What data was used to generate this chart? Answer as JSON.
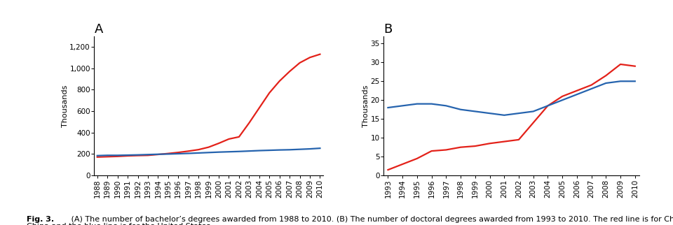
{
  "panel_A": {
    "title": "A",
    "ylabel": "Thousands",
    "years": [
      1988,
      1989,
      1990,
      1991,
      1992,
      1993,
      1994,
      1995,
      1996,
      1997,
      1998,
      1999,
      2000,
      2001,
      2002,
      2003,
      2004,
      2005,
      2006,
      2007,
      2008,
      2009,
      2010
    ],
    "china": [
      172,
      175,
      178,
      183,
      186,
      188,
      196,
      205,
      215,
      227,
      241,
      264,
      300,
      340,
      360,
      490,
      630,
      770,
      880,
      970,
      1050,
      1100,
      1130
    ],
    "usa": [
      185,
      188,
      188,
      190,
      192,
      195,
      198,
      200,
      203,
      206,
      210,
      214,
      218,
      221,
      224,
      228,
      232,
      235,
      238,
      240,
      244,
      248,
      254
    ],
    "ylim": [
      0,
      1300
    ],
    "yticks": [
      0,
      200,
      400,
      600,
      800,
      1000,
      1200
    ],
    "ytick_labels": [
      "0",
      "200",
      "400",
      "600",
      "800",
      "1,000",
      "1,200"
    ]
  },
  "panel_B": {
    "title": "B",
    "ylabel": "Thousands",
    "years": [
      1993,
      1994,
      1995,
      1996,
      1997,
      1998,
      1999,
      2000,
      2001,
      2002,
      2003,
      2004,
      2005,
      2006,
      2007,
      2008,
      2009,
      2010
    ],
    "china": [
      1.5,
      3.0,
      4.5,
      6.5,
      6.8,
      7.5,
      7.8,
      8.5,
      9.0,
      9.5,
      14.0,
      18.5,
      21.0,
      22.5,
      24.0,
      26.5,
      29.5,
      29.0
    ],
    "usa": [
      18.0,
      18.5,
      19.0,
      19.0,
      18.5,
      17.5,
      17.0,
      16.5,
      16.0,
      16.5,
      17.0,
      18.5,
      20.0,
      21.5,
      23.0,
      24.5,
      25.0,
      25.0
    ],
    "ylim": [
      0,
      37
    ],
    "yticks": [
      0,
      5,
      10,
      15,
      20,
      25,
      30,
      35
    ],
    "ytick_labels": [
      "0",
      "5",
      "10",
      "15",
      "20",
      "25",
      "30",
      "35"
    ]
  },
  "china_color": "#e32119",
  "usa_color": "#2563ae",
  "line_width": 1.6,
  "caption_bold": "Fig. 3.",
  "caption_normal": "   (A) The number of bachelor’s degrees awarded from 1988 to 2010. (B) The number of doctoral degrees awarded from 1993 to 2010. The red line is for China and the blue line is for the United States.",
  "background_color": "#ffffff"
}
